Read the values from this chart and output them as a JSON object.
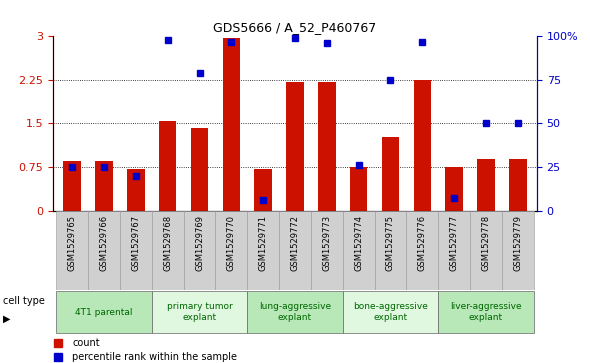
{
  "title": "GDS5666 / A_52_P460767",
  "categories": [
    "GSM1529765",
    "GSM1529766",
    "GSM1529767",
    "GSM1529768",
    "GSM1529769",
    "GSM1529770",
    "GSM1529771",
    "GSM1529772",
    "GSM1529773",
    "GSM1529774",
    "GSM1529775",
    "GSM1529776",
    "GSM1529777",
    "GSM1529778",
    "GSM1529779"
  ],
  "bar_values": [
    0.85,
    0.85,
    0.72,
    1.55,
    1.42,
    2.97,
    0.72,
    2.22,
    2.22,
    0.75,
    1.27,
    2.25,
    0.75,
    0.88,
    0.88
  ],
  "dot_values_pct": [
    25,
    25,
    20,
    98,
    79,
    97,
    6,
    99,
    96,
    26,
    75,
    97,
    7,
    50,
    50
  ],
  "bar_color": "#cc1100",
  "dot_color": "#0000cc",
  "ylim_left": [
    0,
    3.0
  ],
  "ylim_right": [
    0,
    100
  ],
  "yticks_left": [
    0,
    0.75,
    1.5,
    2.25,
    3.0
  ],
  "yticks_right": [
    0,
    25,
    50,
    75,
    100
  ],
  "ytick_left_labels": [
    "0",
    "0.75",
    "1.5",
    "2.25",
    "3"
  ],
  "ytick_right_labels": [
    "0",
    "25",
    "50",
    "75",
    "100%"
  ],
  "cell_type_groups": [
    {
      "label": "4T1 parental",
      "start": 0,
      "end": 3,
      "color": "#b8e8b8"
    },
    {
      "label": "primary tumor\nexplant",
      "start": 3,
      "end": 6,
      "color": "#e0f8e0"
    },
    {
      "label": "lung-aggressive\nexplant",
      "start": 6,
      "end": 9,
      "color": "#b8e8b8"
    },
    {
      "label": "bone-aggressive\nexplant",
      "start": 9,
      "end": 12,
      "color": "#e0f8e0"
    },
    {
      "label": "liver-aggressive\nexplant",
      "start": 12,
      "end": 15,
      "color": "#b8e8b8"
    }
  ],
  "cell_type_label": "cell type",
  "legend_count_label": "count",
  "legend_percentile_label": "percentile rank within the sample",
  "bar_width": 0.55,
  "dot_size": 4
}
